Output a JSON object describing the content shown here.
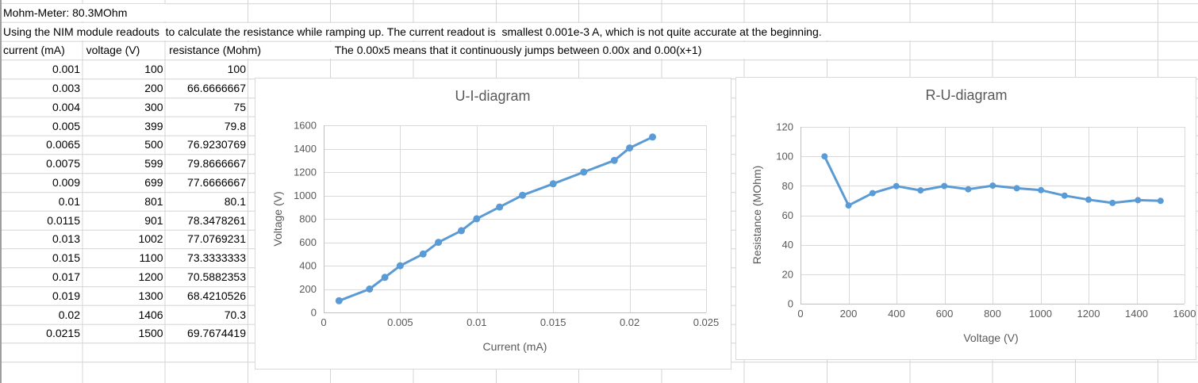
{
  "sheet": {
    "cells": {
      "a1": "Mohm-Meter: 80.3MOhm",
      "a2": "Using the NIM module readouts  to calculate the resistance while ramping up. The current readout is  smallest 0.001e-3 A, which is not quite accurate at the beginning.",
      "e3_note": "The 0.00x5 means that it continuously jumps between 0.00x and 0.00(x+1)"
    },
    "table": {
      "headers": [
        "current (mA)",
        "voltage (V)",
        "resistance (Mohm)"
      ],
      "rows": [
        [
          "0.001",
          "100",
          "100"
        ],
        [
          "0.003",
          "200",
          "66.6666667"
        ],
        [
          "0.004",
          "300",
          "75"
        ],
        [
          "0.005",
          "399",
          "79.8"
        ],
        [
          "0.0065",
          "500",
          "76.9230769"
        ],
        [
          "0.0075",
          "599",
          "79.8666667"
        ],
        [
          "0.009",
          "699",
          "77.6666667"
        ],
        [
          "0.01",
          "801",
          "80.1"
        ],
        [
          "0.0115",
          "901",
          "78.3478261"
        ],
        [
          "0.013",
          "1002",
          "77.0769231"
        ],
        [
          "0.015",
          "1100",
          "73.3333333"
        ],
        [
          "0.017",
          "1200",
          "70.5882353"
        ],
        [
          "0.019",
          "1300",
          "68.4210526"
        ],
        [
          "0.02",
          "1406",
          "70.3"
        ],
        [
          "0.0215",
          "1500",
          "69.7674419"
        ]
      ]
    }
  },
  "colors": {
    "series_blue": "#5B9BD5",
    "chart_text": "#595959",
    "chart_gridline": "#D9D9D9",
    "chart_axis": "#BFBFBF",
    "sheet_gridline": "#D4D4D4"
  },
  "chart_data": [
    {
      "type": "line",
      "title": "U-I-diagram",
      "xlabel": "Current (mA)",
      "ylabel": "Voltage (V)",
      "legend": "none",
      "grid": true,
      "marker": "circle",
      "line_color": "#5B9BD5",
      "xlim": [
        0,
        0.025
      ],
      "ylim": [
        0,
        1600
      ],
      "xticks": [
        0,
        0.005,
        0.01,
        0.015,
        0.02,
        0.025
      ],
      "xtick_labels": [
        "0",
        "0.005",
        "0.01",
        "0.015",
        "0.02",
        "0.025"
      ],
      "yticks": [
        0,
        200,
        400,
        600,
        800,
        1000,
        1200,
        1400,
        1600
      ],
      "x": [
        0.001,
        0.003,
        0.004,
        0.005,
        0.0065,
        0.0075,
        0.009,
        0.01,
        0.0115,
        0.013,
        0.015,
        0.017,
        0.019,
        0.02,
        0.0215
      ],
      "y": [
        100,
        200,
        300,
        399,
        500,
        599,
        699,
        801,
        901,
        1002,
        1100,
        1200,
        1300,
        1406,
        1500
      ]
    },
    {
      "type": "line",
      "title": "R-U-diagram",
      "xlabel": "Voltage (V)",
      "ylabel": "Resistance (MOhm)",
      "legend": "none",
      "grid": true,
      "marker": "circle",
      "line_color": "#5B9BD5",
      "xlim": [
        0,
        1600
      ],
      "ylim": [
        0,
        120
      ],
      "xticks": [
        0,
        200,
        400,
        600,
        800,
        1000,
        1200,
        1400,
        1600
      ],
      "xtick_labels": [
        "0",
        "200",
        "400",
        "600",
        "800",
        "1000",
        "1200",
        "1400",
        "1600"
      ],
      "yticks": [
        0,
        20,
        40,
        60,
        80,
        100,
        120
      ],
      "x": [
        100,
        200,
        300,
        399,
        500,
        599,
        699,
        801,
        901,
        1002,
        1100,
        1200,
        1300,
        1406,
        1500
      ],
      "y": [
        100,
        66.6666667,
        75,
        79.8,
        76.9230769,
        79.8666667,
        77.6666667,
        80.1,
        78.3478261,
        77.0769231,
        73.3333333,
        70.5882353,
        68.4210526,
        70.3,
        69.7674419
      ]
    }
  ]
}
